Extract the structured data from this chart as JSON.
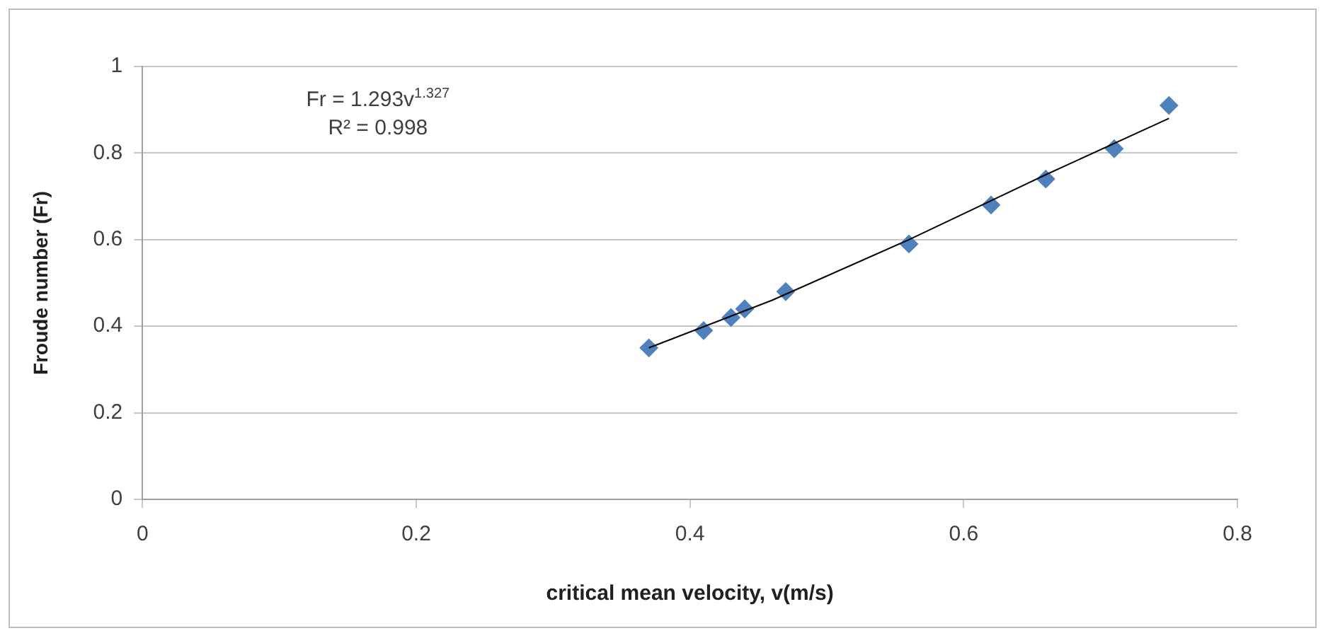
{
  "chart_data": {
    "type": "scatter",
    "xlabel": "critical mean velocity, v(m/s)",
    "ylabel": "Froude number (Fr)",
    "x": [
      0.37,
      0.41,
      0.43,
      0.44,
      0.47,
      0.56,
      0.62,
      0.66,
      0.71,
      0.75
    ],
    "series": [
      {
        "color": "#4f81bd",
        "marker": "diamond",
        "values": [
          0.35,
          0.39,
          0.42,
          0.44,
          0.48,
          0.59,
          0.68,
          0.74,
          0.81,
          0.91
        ]
      },
      {
        "type": "line",
        "color": "#000000",
        "marker": "none",
        "x": [
          0.37,
          0.46,
          0.56,
          0.66,
          0.75
        ],
        "values": [
          0.35,
          0.46,
          0.6,
          0.75,
          0.88
        ]
      }
    ],
    "xlim": [
      0,
      0.8
    ],
    "xticks": [
      0,
      0.2,
      0.4,
      0.6,
      0.8
    ],
    "ylim": [
      0,
      1
    ],
    "yticks": [
      0,
      0.2,
      0.4,
      0.6,
      0.8,
      1
    ],
    "grid": "y",
    "legend": false,
    "annotations": [
      "Fr = 1.293v$^{1.327}$",
      "R² = 0.998"
    ]
  }
}
